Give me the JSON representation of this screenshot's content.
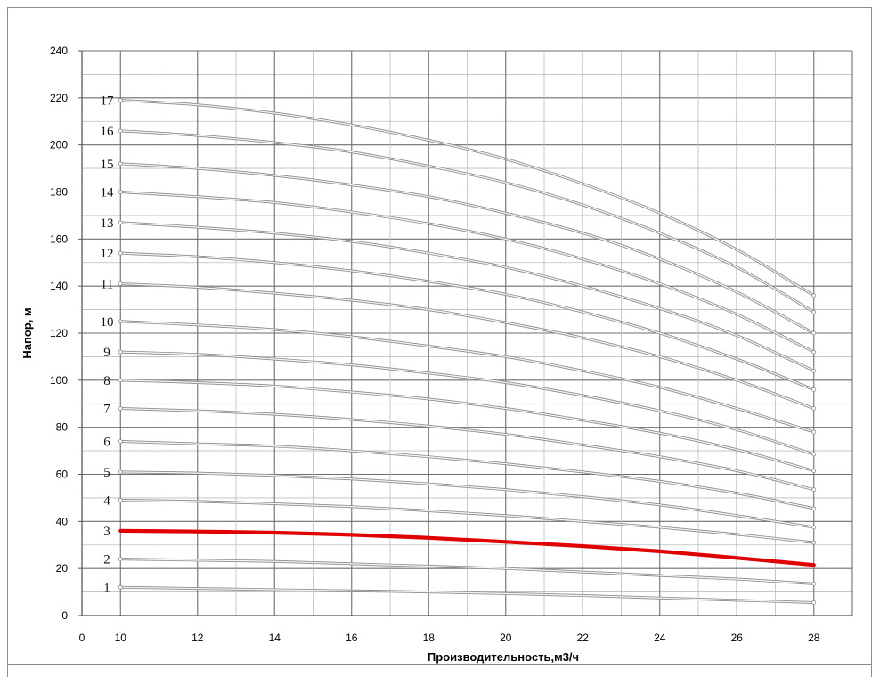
{
  "chart_data": {
    "type": "line",
    "title": "",
    "xlabel": "Производительность,м3/ч",
    "ylabel": "Напор, м",
    "xlim": [
      9,
      29
    ],
    "ylim": [
      0,
      240
    ],
    "x_ticks": [
      "0",
      "10",
      "12",
      "14",
      "16",
      "18",
      "20",
      "22",
      "24",
      "26",
      "28"
    ],
    "y_ticks": [
      "0",
      "20",
      "40",
      "60",
      "80",
      "100",
      "120",
      "140",
      "160",
      "180",
      "200",
      "220",
      "240"
    ],
    "grid": true,
    "legend": "none",
    "x": [
      10,
      12,
      14,
      16,
      18,
      20,
      22,
      24,
      26,
      28
    ],
    "series": [
      {
        "name": "1",
        "values": [
          12,
          11.5,
          11,
          10.5,
          10,
          9.3,
          8.5,
          7.5,
          6.5,
          5.5
        ]
      },
      {
        "name": "2",
        "values": [
          24,
          23.5,
          23,
          22,
          21,
          20,
          18.5,
          17,
          15.5,
          13.5
        ]
      },
      {
        "name": "3",
        "values": [
          36,
          35.7,
          35.2,
          34.3,
          33,
          31.3,
          29.5,
          27.3,
          24.5,
          21.5
        ],
        "color": "#e00000",
        "highlight": true
      },
      {
        "name": "4",
        "values": [
          49,
          48.5,
          47.5,
          46.3,
          44.5,
          42.5,
          40,
          37.5,
          34.5,
          31
        ]
      },
      {
        "name": "5",
        "values": [
          61,
          60.5,
          59.5,
          58,
          56,
          53.5,
          50.5,
          47,
          42.5,
          37.5
        ]
      },
      {
        "name": "6",
        "values": [
          74,
          73,
          72,
          70,
          67.5,
          64.5,
          61,
          57,
          52,
          45.5
        ]
      },
      {
        "name": "7",
        "values": [
          88,
          87,
          85.5,
          83.3,
          80.5,
          77,
          72.5,
          67.5,
          61.5,
          53.5
        ]
      },
      {
        "name": "8",
        "values": [
          100,
          99,
          97.5,
          95,
          92,
          88,
          83,
          77.5,
          70.5,
          61.5
        ]
      },
      {
        "name": "9",
        "values": [
          112,
          111,
          109,
          106.5,
          103,
          99,
          93.5,
          87,
          79,
          68.5
        ]
      },
      {
        "name": "10",
        "values": [
          125,
          123.5,
          121.5,
          118.5,
          114.5,
          110,
          104,
          97,
          88,
          78
        ]
      },
      {
        "name": "11",
        "values": [
          141,
          139.5,
          137,
          134,
          130,
          124.5,
          118,
          110,
          100,
          88
        ]
      },
      {
        "name": "12",
        "values": [
          154,
          152.5,
          150,
          146.5,
          142,
          136.5,
          129,
          120,
          109,
          96
        ]
      },
      {
        "name": "13",
        "values": [
          167,
          165,
          162.5,
          159,
          154,
          148,
          140,
          130.5,
          119,
          104
        ]
      },
      {
        "name": "14",
        "values": [
          180,
          178,
          175.5,
          171.5,
          166.5,
          160,
          151.5,
          141,
          128,
          112
        ]
      },
      {
        "name": "15",
        "values": [
          192,
          190,
          187,
          183,
          178,
          171,
          162.5,
          151.5,
          137.5,
          120
        ]
      },
      {
        "name": "16",
        "values": [
          206,
          204,
          201,
          197,
          191,
          184,
          174.5,
          162.5,
          148,
          129
        ]
      },
      {
        "name": "17",
        "values": [
          219,
          217,
          213.5,
          208.5,
          202,
          194,
          183.5,
          171,
          155.5,
          136
        ]
      }
    ]
  }
}
